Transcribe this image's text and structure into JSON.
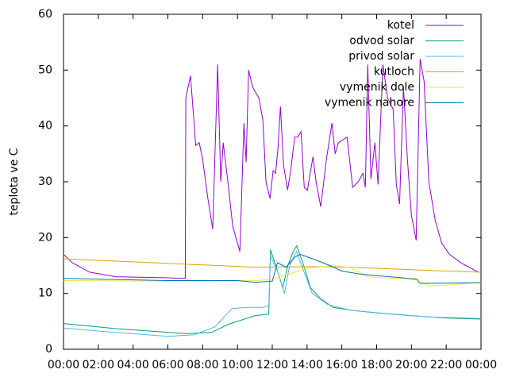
{
  "chart_data": {
    "type": "line",
    "ylabel": "teplota ve C",
    "xlim": [
      0,
      24
    ],
    "xticks": [
      {
        "value": 0,
        "label": "00:00"
      },
      {
        "value": 2,
        "label": "02:00"
      },
      {
        "value": 4,
        "label": "04:00"
      },
      {
        "value": 6,
        "label": "06:00"
      },
      {
        "value": 8,
        "label": "08:00"
      },
      {
        "value": 10,
        "label": "10:00"
      },
      {
        "value": 12,
        "label": "12:00"
      },
      {
        "value": 14,
        "label": "14:00"
      },
      {
        "value": 16,
        "label": "16:00"
      },
      {
        "value": 18,
        "label": "18:00"
      },
      {
        "value": 20,
        "label": "20:00"
      },
      {
        "value": 22,
        "label": "22:00"
      },
      {
        "value": 24,
        "label": "00:00"
      }
    ],
    "ylim": [
      0,
      60
    ],
    "yticks": [
      0,
      10,
      20,
      30,
      40,
      50,
      60
    ],
    "grid": false,
    "legend": "top-right",
    "series": [
      {
        "name": "kotel",
        "color": "#9400d3",
        "x": [
          0,
          0.5,
          1.5,
          3,
          6,
          7,
          7.03,
          7.3,
          7.6,
          7.8,
          8.0,
          8.3,
          8.58,
          8.86,
          9.04,
          9.18,
          9.45,
          9.73,
          10.14,
          10.37,
          10.5,
          10.64,
          10.87,
          11.23,
          11.46,
          11.64,
          11.87,
          12.05,
          12.19,
          12.33,
          12.47,
          12.65,
          12.88,
          13.06,
          13.29,
          13.47,
          13.65,
          13.84,
          14.02,
          14.34,
          14.52,
          14.79,
          15.11,
          15.43,
          15.62,
          15.8,
          16.3,
          16.62,
          16.94,
          17.21,
          17.35,
          17.49,
          17.67,
          17.9,
          18.08,
          18.36,
          18.63,
          18.95,
          19.13,
          19.32,
          19.54,
          19.77,
          20.0,
          20.27,
          20.5,
          20.73,
          21.0,
          21.37,
          21.74,
          22.19,
          22.83,
          23.84
        ],
        "values": [
          17,
          15.5,
          13.8,
          13,
          12.8,
          12.7,
          45,
          49,
          36.5,
          37,
          34,
          27,
          21.5,
          51,
          30,
          37,
          30,
          22,
          17.5,
          40.5,
          33.5,
          50,
          47,
          45,
          41,
          30,
          27,
          32,
          31.5,
          36,
          43.5,
          33,
          28.5,
          32,
          38,
          38,
          39,
          29,
          28.5,
          34.5,
          30,
          25.5,
          34,
          40.5,
          35,
          37,
          38,
          29,
          30,
          31.5,
          29,
          51,
          30.5,
          37,
          29.5,
          51,
          45,
          43,
          29.5,
          26,
          47,
          34,
          24,
          19.5,
          52,
          48,
          30,
          23,
          19,
          17,
          15.5,
          13.8
        ]
      },
      {
        "name": "odvod solar",
        "color": "#009e73",
        "x": [
          0,
          3,
          7,
          8.5,
          9.5,
          10.5,
          11,
          11.8,
          11.9,
          12.2,
          12.6,
          12.9,
          13.2,
          13.4,
          13.7,
          14.2,
          14.8,
          15.5,
          16.5,
          18,
          20,
          22,
          24
        ],
        "values": [
          4.6,
          3.7,
          2.8,
          3,
          4.5,
          5.5,
          6,
          6.3,
          17.8,
          15,
          11,
          15,
          17.5,
          18.5,
          16,
          11,
          9,
          7.5,
          7,
          6.5,
          6,
          5.6,
          5.4
        ]
      },
      {
        "name": "privod solar",
        "color": "#56b4e9",
        "x": [
          0,
          3,
          6,
          7.5,
          8.7,
          9.3,
          9.7,
          10.5,
          11.5,
          11.8,
          11.9,
          12.3,
          12.7,
          13.0,
          13.3,
          13.4,
          13.8,
          14.3,
          15.2,
          16.5,
          18.5,
          21,
          24
        ],
        "values": [
          3.8,
          3,
          2.3,
          2.6,
          4,
          6,
          7.3,
          7.5,
          7.5,
          7.8,
          16.7,
          14,
          10,
          15,
          17,
          17.5,
          14,
          10,
          8,
          7,
          6.4,
          5.8,
          5.5
        ]
      },
      {
        "name": "kutloch",
        "color": "#e69f00",
        "x": [
          0,
          11,
          15,
          18,
          22,
          24
        ],
        "values": [
          16.2,
          14.7,
          14.8,
          14.5,
          14,
          13.8
        ]
      },
      {
        "name": "vymenik dole",
        "color": "#f0e442",
        "x": [
          0,
          6,
          11,
          12,
          13,
          14,
          15.5,
          16.5,
          17.5,
          19,
          20.3,
          21,
          22,
          24
        ],
        "values": [
          12.3,
          12.2,
          12.3,
          12.5,
          13.5,
          14.5,
          15,
          14.6,
          13,
          12.7,
          12.7,
          11.3,
          11.5,
          12
        ]
      },
      {
        "name": "vymenik nahore",
        "color": "#0072b2",
        "x": [
          0,
          6,
          10,
          11,
          12,
          12.3,
          12.8,
          13.3,
          13.6,
          14.5,
          15.3,
          16,
          17,
          18,
          19.5,
          20.3,
          20.5,
          24
        ],
        "values": [
          12.7,
          12.3,
          12.3,
          12,
          12.2,
          15.5,
          14.7,
          16.5,
          17,
          16,
          15,
          14,
          13.5,
          13.2,
          12.8,
          12.5,
          11.8,
          11.9
        ]
      }
    ]
  }
}
